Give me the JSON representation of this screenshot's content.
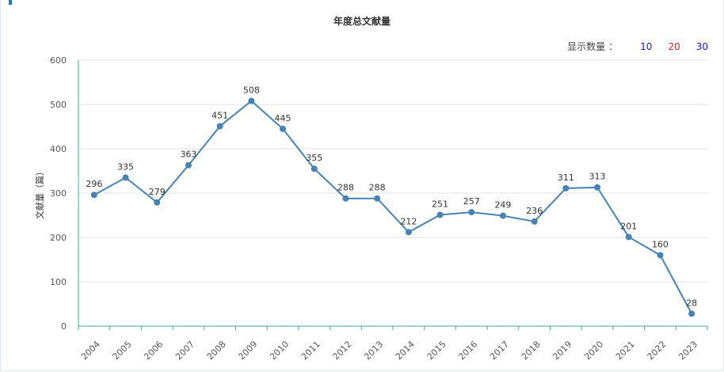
{
  "header": {
    "title": "年度总文献量"
  },
  "count_selector": {
    "label": "显示数量",
    "separator": "：",
    "options": [
      {
        "label": "10",
        "color": "#1a1adb"
      },
      {
        "label": "20",
        "color": "#d9272e"
      },
      {
        "label": "30",
        "color": "#1a1adb"
      }
    ]
  },
  "chart_data": {
    "type": "line",
    "title": "年度总文献量",
    "xlabel": "",
    "ylabel": "文献量（篇）",
    "ylim": [
      0,
      600
    ],
    "yticks": [
      0,
      100,
      200,
      300,
      400,
      500,
      600
    ],
    "grid": true,
    "categories": [
      "2004",
      "2005",
      "2006",
      "2007",
      "2008",
      "2009",
      "2010",
      "2011",
      "2012",
      "2013",
      "2014",
      "2015",
      "2016",
      "2017",
      "2018",
      "2019",
      "2020",
      "2021",
      "2022",
      "2023"
    ],
    "values": [
      296,
      335,
      279,
      363,
      451,
      508,
      445,
      355,
      288,
      288,
      212,
      251,
      257,
      249,
      236,
      311,
      313,
      201,
      160,
      28
    ],
    "line_color": "#4682b4"
  }
}
